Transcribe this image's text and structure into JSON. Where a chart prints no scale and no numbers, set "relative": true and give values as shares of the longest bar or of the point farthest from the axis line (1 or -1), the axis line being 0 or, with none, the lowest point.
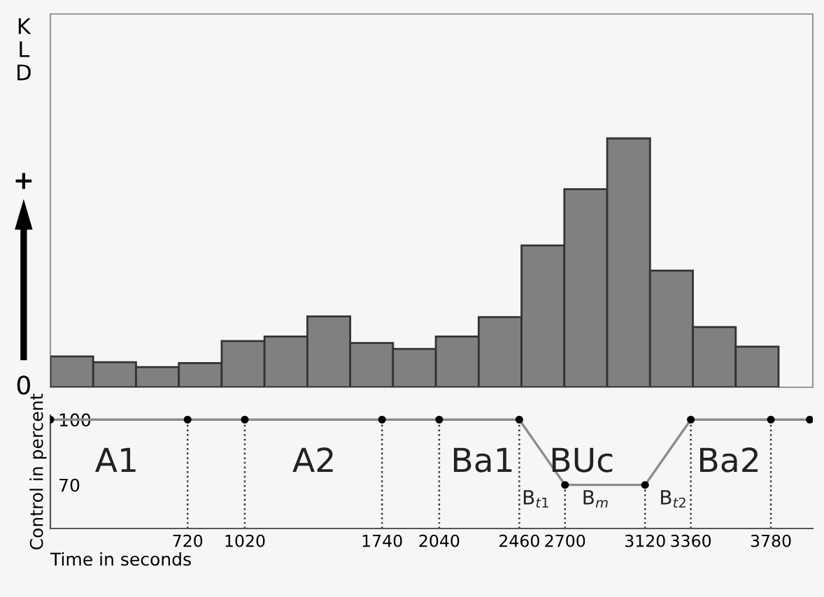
{
  "chart_data": [
    {
      "type": "bar",
      "relative": true,
      "ylabel": "KLD",
      "color": "#808080",
      "tick_labels": false,
      "categories": [
        null,
        null,
        null,
        null,
        null,
        null,
        null,
        null,
        null,
        null,
        null,
        null,
        null,
        null,
        null,
        null,
        null
      ],
      "values": [
        0.124,
        0.101,
        0.081,
        0.097,
        0.186,
        0.204,
        0.285,
        0.178,
        0.154,
        0.204,
        0.282,
        0.57,
        0.796,
        1,
        0.469,
        0.242,
        0.163
      ],
      "annotations": [
        "0",
        "+"
      ]
    },
    {
      "type": "line",
      "ylabel": "Control in percent",
      "xlabel": "Time in seconds",
      "color": "#8c8c8c",
      "marker": "circle",
      "x": [
        0,
        720,
        1020,
        1740,
        2040,
        2460,
        2700,
        3120,
        3360,
        3780,
        3984
      ],
      "values": [
        100,
        100,
        100,
        100,
        100,
        100,
        70,
        70,
        100,
        100,
        100
      ],
      "xlim": [
        0,
        4000
      ],
      "ylim": [
        50,
        102
      ],
      "xticks": [
        720,
        1020,
        1740,
        2040,
        2460,
        2700,
        3120,
        3360,
        3780
      ],
      "yticks": [
        70,
        100
      ],
      "ref_lines": [
        {
          "axis": "x",
          "value": 720,
          "line_style": "dotted"
        },
        {
          "axis": "x",
          "value": 1020,
          "line_style": "dotted"
        },
        {
          "axis": "x",
          "value": 1740,
          "line_style": "dotted"
        },
        {
          "axis": "x",
          "value": 2040,
          "line_style": "dotted"
        },
        {
          "axis": "x",
          "value": 2460,
          "line_style": "dotted"
        },
        {
          "axis": "x",
          "value": 2700,
          "line_style": "dotted"
        },
        {
          "axis": "x",
          "value": 3120,
          "line_style": "dotted"
        },
        {
          "axis": "x",
          "value": 3360,
          "line_style": "dotted"
        },
        {
          "axis": "x",
          "value": 3780,
          "line_style": "dotted"
        }
      ],
      "annotations": [
        "A1",
        "A2",
        "Ba1",
        "BUc",
        "Ba2",
        "B$_{t1}$",
        "B$_{m}$",
        "B$_{t2}$"
      ]
    }
  ]
}
